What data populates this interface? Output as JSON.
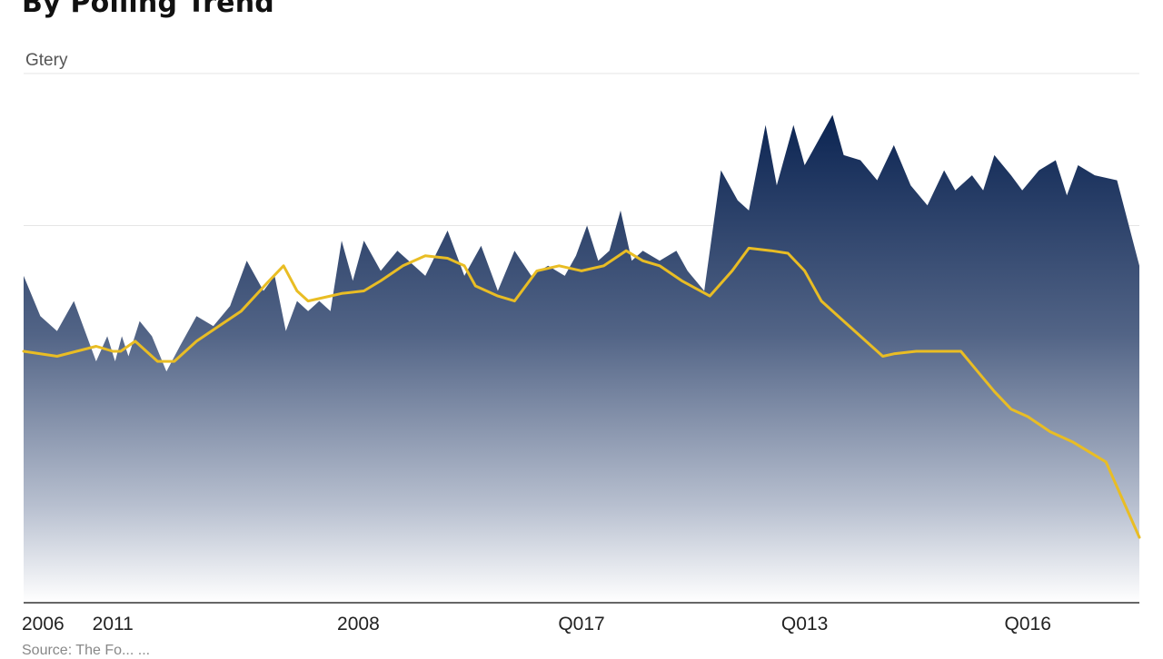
{
  "chart_data": {
    "type": "area",
    "title": "By Polling Trend",
    "ylabel": "Gtery",
    "source": "Source: The Fo... ...",
    "ylim": [
      0,
      100
    ],
    "grid": true,
    "x_ticks": [
      {
        "label": "2006",
        "x": 0
      },
      {
        "label": "2011",
        "x": 8
      },
      {
        "label": "2008",
        "x": 30
      },
      {
        "label": "Q017",
        "x": 50
      },
      {
        "label": "Q013",
        "x": 70
      },
      {
        "label": "Q016",
        "x": 90
      }
    ],
    "series": [
      {
        "kind": "area",
        "color": "#0b2452",
        "points": [
          [
            0,
            65
          ],
          [
            1.5,
            57
          ],
          [
            3,
            54
          ],
          [
            4.5,
            60
          ],
          [
            6.5,
            48
          ],
          [
            7.5,
            53
          ],
          [
            8.2,
            48
          ],
          [
            8.8,
            53
          ],
          [
            9.4,
            49
          ],
          [
            10.4,
            56
          ],
          [
            11.5,
            53
          ],
          [
            12.8,
            46
          ],
          [
            14,
            51
          ],
          [
            15.5,
            57
          ],
          [
            17,
            55
          ],
          [
            18.5,
            59
          ],
          [
            20,
            68
          ],
          [
            21.5,
            62
          ],
          [
            22.5,
            65
          ],
          [
            23.5,
            54
          ],
          [
            24.5,
            60
          ],
          [
            25.5,
            58
          ],
          [
            26.5,
            60
          ],
          [
            27.5,
            58
          ],
          [
            28.5,
            72
          ],
          [
            29.5,
            64
          ],
          [
            30.5,
            72
          ],
          [
            32,
            66
          ],
          [
            33.5,
            70
          ],
          [
            34.5,
            68
          ],
          [
            36,
            65
          ],
          [
            38,
            74
          ],
          [
            39.5,
            65
          ],
          [
            41,
            71
          ],
          [
            42.5,
            62
          ],
          [
            44,
            70
          ],
          [
            45.5,
            65
          ],
          [
            47,
            67
          ],
          [
            48.5,
            65
          ],
          [
            49.5,
            69
          ],
          [
            50.5,
            75
          ],
          [
            51.5,
            68
          ],
          [
            52.5,
            70
          ],
          [
            53.5,
            78
          ],
          [
            54.5,
            68
          ],
          [
            55.5,
            70
          ],
          [
            57,
            68
          ],
          [
            58.5,
            70
          ],
          [
            59.5,
            66
          ],
          [
            61,
            62
          ],
          [
            62.5,
            86
          ],
          [
            64,
            80
          ],
          [
            65,
            78
          ],
          [
            66.5,
            95
          ],
          [
            67.5,
            83
          ],
          [
            69,
            95
          ],
          [
            70,
            87
          ],
          [
            71.5,
            93
          ],
          [
            72.5,
            97
          ],
          [
            73.5,
            89
          ],
          [
            75,
            88
          ],
          [
            76.5,
            84
          ],
          [
            78,
            91
          ],
          [
            79.5,
            83
          ],
          [
            81,
            79
          ],
          [
            82.5,
            86
          ],
          [
            83.5,
            82
          ],
          [
            85,
            85
          ],
          [
            86,
            82
          ],
          [
            87,
            89
          ],
          [
            88.5,
            85
          ],
          [
            89.5,
            82
          ],
          [
            91,
            86
          ],
          [
            92.5,
            88
          ],
          [
            93.5,
            81
          ],
          [
            94.5,
            87
          ],
          [
            96,
            85
          ],
          [
            98,
            84
          ],
          [
            100,
            67
          ]
        ]
      },
      {
        "kind": "line",
        "color": "#e9bd24",
        "points": [
          [
            0,
            50
          ],
          [
            3,
            49
          ],
          [
            6.5,
            51
          ],
          [
            8,
            50
          ],
          [
            8.7,
            50
          ],
          [
            10,
            52
          ],
          [
            12,
            48
          ],
          [
            13.5,
            48
          ],
          [
            15.5,
            52
          ],
          [
            17.5,
            55
          ],
          [
            19.5,
            58
          ],
          [
            22,
            64
          ],
          [
            23.3,
            67
          ],
          [
            24.5,
            62
          ],
          [
            25.5,
            60
          ],
          [
            27.5,
            61
          ],
          [
            28.5,
            61.5
          ],
          [
            30.5,
            62
          ],
          [
            32,
            64
          ],
          [
            34,
            67
          ],
          [
            36,
            69
          ],
          [
            38,
            68.5
          ],
          [
            39.5,
            67
          ],
          [
            40.5,
            63
          ],
          [
            42.5,
            61
          ],
          [
            44,
            60
          ],
          [
            46,
            66
          ],
          [
            48,
            67
          ],
          [
            50,
            66
          ],
          [
            52,
            67
          ],
          [
            54,
            70
          ],
          [
            55.5,
            68
          ],
          [
            57,
            67
          ],
          [
            59,
            64
          ],
          [
            61.5,
            61
          ],
          [
            63.5,
            66
          ],
          [
            65,
            70.5
          ],
          [
            67,
            70
          ],
          [
            68.5,
            69.5
          ],
          [
            70,
            66
          ],
          [
            71.5,
            60
          ],
          [
            73,
            57
          ],
          [
            75.5,
            52
          ],
          [
            77,
            49
          ],
          [
            78,
            49.5
          ],
          [
            80,
            50
          ],
          [
            82,
            50
          ],
          [
            84,
            50
          ],
          [
            85.5,
            46
          ],
          [
            87,
            42
          ],
          [
            88.5,
            38.5
          ],
          [
            90,
            37
          ],
          [
            92,
            34
          ],
          [
            94,
            32
          ],
          [
            97,
            28
          ],
          [
            100,
            13
          ]
        ]
      }
    ]
  }
}
